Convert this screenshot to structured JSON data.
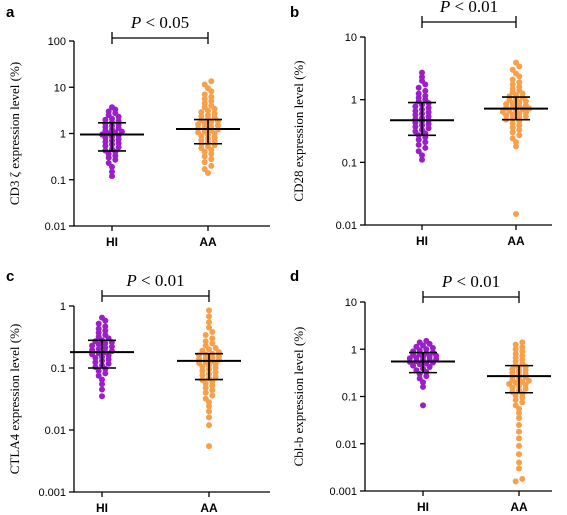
{
  "colors": {
    "HI": "#9b1fc9",
    "AA": "#f7a04b"
  },
  "chart_data": [
    {
      "type": "scatter",
      "panel": "a",
      "ylabel": "CD3 ζ  expression level (%)",
      "yscale": "log",
      "ylim": [
        0.01,
        100
      ],
      "yticks": [
        0.01,
        0.1,
        1,
        10,
        100
      ],
      "ytick_labels": [
        "0.01",
        "0.1",
        "1",
        "10",
        "100"
      ],
      "categories": [
        "HI",
        "AA"
      ],
      "pvalue_text": "P < 0.05",
      "groups": [
        {
          "name": "HI",
          "median": 0.95,
          "q1": 0.42,
          "q3": 1.7,
          "values": [
            0.12,
            0.15,
            0.19,
            0.23,
            0.27,
            0.3,
            0.33,
            0.36,
            0.4,
            0.43,
            0.46,
            0.5,
            0.54,
            0.58,
            0.62,
            0.66,
            0.7,
            0.75,
            0.8,
            0.85,
            0.9,
            0.95,
            1.0,
            1.05,
            1.1,
            1.16,
            1.22,
            1.3,
            1.38,
            1.46,
            1.55,
            1.65,
            1.75,
            1.85,
            1.98,
            2.1,
            2.3,
            2.5,
            2.75,
            3.0,
            3.3,
            3.7
          ]
        },
        {
          "name": "AA",
          "median": 1.25,
          "q1": 0.6,
          "q3": 2.0,
          "values": [
            0.14,
            0.17,
            0.2,
            0.24,
            0.28,
            0.32,
            0.36,
            0.4,
            0.44,
            0.48,
            0.52,
            0.56,
            0.6,
            0.64,
            0.68,
            0.72,
            0.77,
            0.82,
            0.87,
            0.93,
            0.99,
            1.05,
            1.1,
            1.16,
            1.22,
            1.28,
            1.35,
            1.42,
            1.5,
            1.58,
            1.66,
            1.75,
            1.85,
            1.95,
            2.05,
            2.2,
            2.35,
            2.5,
            2.7,
            2.9,
            3.1,
            3.4,
            3.7,
            4.0,
            4.5,
            5.0,
            5.6,
            6.2,
            7.0,
            8.2,
            9.5,
            11.5,
            13.5
          ]
        }
      ]
    },
    {
      "type": "scatter",
      "panel": "b",
      "ylabel": "CD28 expression level (%)",
      "yscale": "log",
      "ylim": [
        0.01,
        10
      ],
      "yticks": [
        0.01,
        0.1,
        1,
        10
      ],
      "ytick_labels": [
        "0.01",
        "0.1",
        "1",
        "10"
      ],
      "categories": [
        "HI",
        "AA"
      ],
      "pvalue_text": "P < 0.01",
      "groups": [
        {
          "name": "HI",
          "median": 0.47,
          "q1": 0.27,
          "q3": 0.9,
          "values": [
            0.11,
            0.13,
            0.15,
            0.17,
            0.19,
            0.21,
            0.23,
            0.25,
            0.27,
            0.29,
            0.31,
            0.33,
            0.35,
            0.37,
            0.39,
            0.41,
            0.43,
            0.45,
            0.47,
            0.49,
            0.51,
            0.54,
            0.57,
            0.6,
            0.63,
            0.66,
            0.7,
            0.74,
            0.78,
            0.83,
            0.88,
            0.94,
            1.0,
            1.07,
            1.15,
            1.25,
            1.38,
            1.55,
            1.75,
            2.0,
            2.3,
            2.7
          ]
        },
        {
          "name": "AA",
          "median": 0.72,
          "q1": 0.48,
          "q3": 1.1,
          "values": [
            0.015,
            0.18,
            0.21,
            0.24,
            0.27,
            0.3,
            0.33,
            0.36,
            0.39,
            0.42,
            0.45,
            0.48,
            0.5,
            0.52,
            0.54,
            0.56,
            0.58,
            0.6,
            0.62,
            0.64,
            0.66,
            0.68,
            0.7,
            0.72,
            0.74,
            0.76,
            0.79,
            0.82,
            0.85,
            0.88,
            0.91,
            0.95,
            0.99,
            1.03,
            1.08,
            1.13,
            1.18,
            1.25,
            1.32,
            1.4,
            1.5,
            1.6,
            1.75,
            1.9,
            2.1,
            2.35,
            2.6,
            3.0,
            3.4,
            3.9
          ]
        }
      ]
    },
    {
      "type": "scatter",
      "panel": "c",
      "ylabel": "CTLA4 expression level (%)",
      "yscale": "log",
      "ylim": [
        0.001,
        1
      ],
      "yticks": [
        0.001,
        0.01,
        0.1,
        1
      ],
      "ytick_labels": [
        "0.001",
        "0.01",
        "0.1",
        "1"
      ],
      "categories": [
        "HI",
        "AA"
      ],
      "pvalue_text": "P < 0.01",
      "groups": [
        {
          "name": "HI",
          "median": 0.18,
          "q1": 0.1,
          "q3": 0.28,
          "values": [
            0.035,
            0.045,
            0.055,
            0.065,
            0.075,
            0.082,
            0.09,
            0.097,
            0.104,
            0.11,
            0.117,
            0.124,
            0.131,
            0.138,
            0.145,
            0.152,
            0.159,
            0.166,
            0.173,
            0.18,
            0.187,
            0.195,
            0.203,
            0.212,
            0.221,
            0.23,
            0.24,
            0.25,
            0.26,
            0.27,
            0.28,
            0.3,
            0.32,
            0.34,
            0.37,
            0.4,
            0.43,
            0.47,
            0.52,
            0.58,
            0.65
          ]
        },
        {
          "name": "AA",
          "median": 0.13,
          "q1": 0.065,
          "q3": 0.17,
          "values": [
            0.0055,
            0.012,
            0.016,
            0.02,
            0.024,
            0.028,
            0.032,
            0.036,
            0.04,
            0.044,
            0.048,
            0.052,
            0.056,
            0.06,
            0.064,
            0.068,
            0.072,
            0.076,
            0.08,
            0.085,
            0.09,
            0.095,
            0.1,
            0.105,
            0.11,
            0.115,
            0.12,
            0.125,
            0.13,
            0.135,
            0.14,
            0.145,
            0.15,
            0.155,
            0.16,
            0.165,
            0.17,
            0.18,
            0.19,
            0.2,
            0.21,
            0.23,
            0.25,
            0.27,
            0.3,
            0.34,
            0.38,
            0.45,
            0.55,
            0.68,
            0.85
          ]
        }
      ]
    },
    {
      "type": "scatter",
      "panel": "d",
      "ylabel": "Cbl-b expression level (%)",
      "yscale": "log",
      "ylim": [
        0.001,
        10
      ],
      "yticks": [
        0.001,
        0.01,
        0.1,
        1,
        10
      ],
      "ytick_labels": [
        "0.001",
        "0.01",
        "0.1",
        "1",
        "10"
      ],
      "categories": [
        "HI",
        "AA"
      ],
      "pvalue_text": "P < 0.01",
      "groups": [
        {
          "name": "HI",
          "median": 0.55,
          "q1": 0.32,
          "q3": 0.85,
          "values": [
            0.065,
            0.16,
            0.2,
            0.24,
            0.27,
            0.3,
            0.33,
            0.36,
            0.39,
            0.42,
            0.45,
            0.48,
            0.5,
            0.52,
            0.54,
            0.56,
            0.58,
            0.6,
            0.62,
            0.64,
            0.66,
            0.68,
            0.7,
            0.73,
            0.76,
            0.79,
            0.82,
            0.86,
            0.9,
            0.95,
            1.0,
            1.06,
            1.13,
            1.2,
            1.3,
            1.4,
            1.5
          ]
        },
        {
          "name": "AA",
          "median": 0.27,
          "q1": 0.12,
          "q3": 0.45,
          "values": [
            0.0016,
            0.0018,
            0.003,
            0.004,
            0.006,
            0.009,
            0.013,
            0.018,
            0.025,
            0.035,
            0.045,
            0.055,
            0.065,
            0.075,
            0.085,
            0.095,
            0.105,
            0.115,
            0.125,
            0.135,
            0.145,
            0.155,
            0.165,
            0.175,
            0.185,
            0.195,
            0.205,
            0.215,
            0.225,
            0.24,
            0.255,
            0.27,
            0.285,
            0.3,
            0.32,
            0.34,
            0.36,
            0.38,
            0.4,
            0.43,
            0.46,
            0.5,
            0.55,
            0.6,
            0.66,
            0.73,
            0.8,
            0.9,
            1.0,
            1.1,
            1.25,
            1.4
          ]
        }
      ]
    }
  ]
}
